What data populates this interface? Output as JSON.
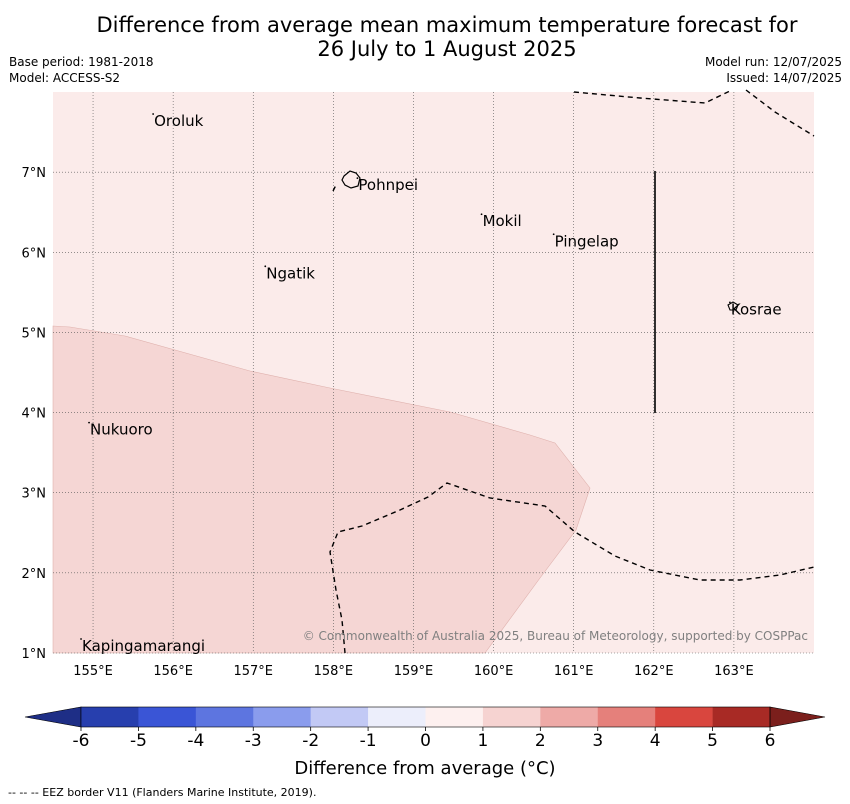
{
  "title_line1": "Difference from average mean maximum temperature forecast for",
  "title_line2": "26 July to 1 August 2025",
  "base_period": "Base period: 1981-2018",
  "model": "Model: ACCESS-S2",
  "model_run": "Model run: 12/07/2025",
  "issued": "Issued: 14/07/2025",
  "map": {
    "lon_range": [
      154.5,
      164.0
    ],
    "lat_range": [
      1.0,
      8.0
    ],
    "lon_ticks": [
      "155°E",
      "156°E",
      "157°E",
      "158°E",
      "159°E",
      "160°E",
      "161°E",
      "162°E",
      "163°E"
    ],
    "lat_ticks": [
      "1°N",
      "2°N",
      "3°N",
      "4°N",
      "5°N",
      "6°N",
      "7°N"
    ],
    "places": [
      {
        "name": "Oroluk",
        "lon": 155.75,
        "lat": 7.65
      },
      {
        "name": "Pohnpei",
        "lon": 158.3,
        "lat": 6.85
      },
      {
        "name": "Mokil",
        "lon": 159.85,
        "lat": 6.4
      },
      {
        "name": "Pingelap",
        "lon": 160.75,
        "lat": 6.15
      },
      {
        "name": "Ngatik",
        "lon": 157.15,
        "lat": 5.75
      },
      {
        "name": "Kosrae",
        "lon": 162.95,
        "lat": 5.3
      },
      {
        "name": "Nukuoro",
        "lon": 154.95,
        "lat": 3.8
      },
      {
        "name": "Kapingamarangi",
        "lon": 154.85,
        "lat": 1.1
      }
    ],
    "anomaly_background": "0 to 1",
    "anomaly_region": "1 to 2",
    "copyright": "© Commonwealth of Australia 2025, Bureau of Meteorology, supported by COSPPac"
  },
  "colorbar": {
    "ticks": [
      "-6",
      "-5",
      "-4",
      "-3",
      "-2",
      "-1",
      "0",
      "1",
      "2",
      "3",
      "4",
      "5",
      "6"
    ],
    "colors": [
      "#273fae",
      "#3a55d6",
      "#5d75e0",
      "#8a9ced",
      "#c2c9f5",
      "#eceefb",
      "#fdf0ef",
      "#f6d3d1",
      "#eeaaa7",
      "#e5807b",
      "#d9463e",
      "#a82a25"
    ],
    "extend_low": "#1e2e86",
    "extend_high": "#7b1f1c",
    "label": "Difference from average (°C)"
  },
  "footer": "-- -- -- EEZ border V11 (Flanders Marine Institute, 2019)."
}
